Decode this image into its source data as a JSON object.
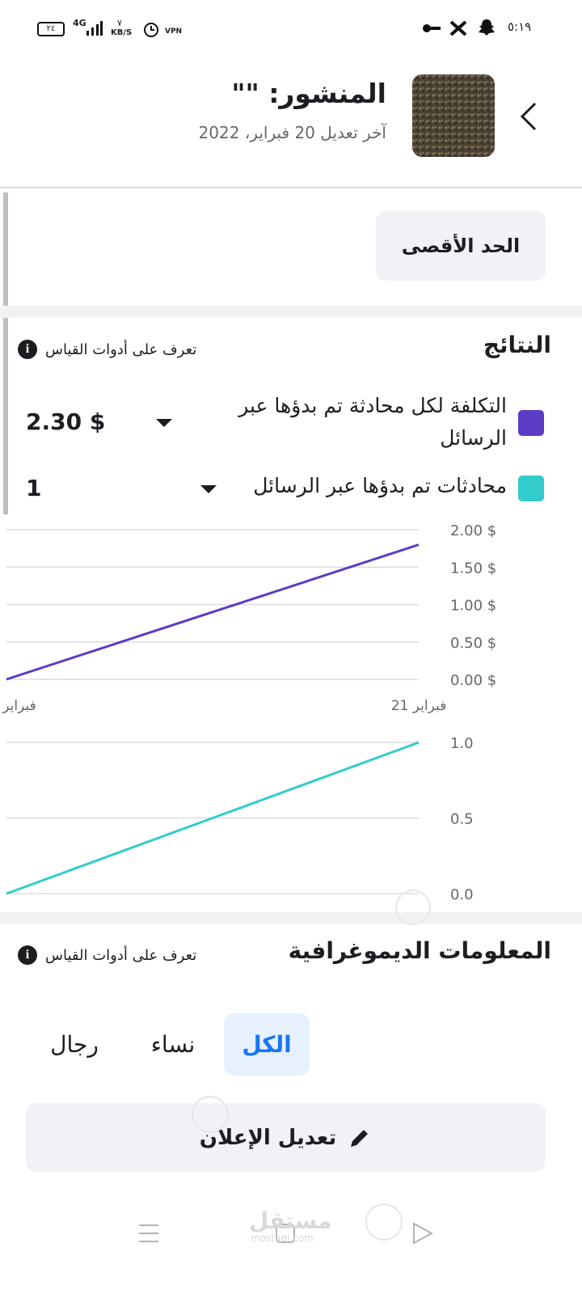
{
  "status_bar": {
    "battery": "٢٤",
    "network": "4G",
    "speed_value": "٧",
    "speed_unit": "KB/S",
    "vpn": "VPN",
    "time": "٥:١٩"
  },
  "header": {
    "title": "المنشور: \"\"",
    "subtitle": "آخر تعديل 20 فبراير، 2022"
  },
  "max_button": "الحد الأقصى",
  "results": {
    "title": "النتائج",
    "info_link": "تعرف على أدوات القياس",
    "metrics": [
      {
        "name": "التكلفة لكل محادثة تم بدؤها عبر الرسائل",
        "color": "#5b3cc4",
        "value": "2.30 $"
      },
      {
        "name": "محادثات تم بدؤها عبر الرسائل",
        "color": "#33cccc",
        "value": "1"
      }
    ]
  },
  "charts": [
    {
      "type": "line",
      "categories": [
        "فبراير",
        "فبراير 21"
      ],
      "values": [
        0,
        1.8
      ],
      "color": "#5b3cc4",
      "ylim": [
        0,
        2
      ],
      "yticks": [
        {
          "value": 0,
          "label": "0.00 $"
        },
        {
          "value": 0.5,
          "label": "0.50 $"
        },
        {
          "value": 1,
          "label": "1.00 $"
        },
        {
          "value": 1.5,
          "label": "1.50 $"
        },
        {
          "value": 2,
          "label": "2.00 $"
        }
      ],
      "grid": true
    },
    {
      "type": "line",
      "values": [
        0,
        1
      ],
      "color": "#33cccc",
      "ylim": [
        0,
        1
      ],
      "yticks": [
        {
          "value": 0,
          "label": "0.0"
        },
        {
          "value": 0.5,
          "label": "0.5"
        },
        {
          "value": 1,
          "label": "1.0"
        }
      ],
      "grid": true
    }
  ],
  "demographics": {
    "title": "المعلومات الديموغرافية",
    "info_link": "تعرف على أدوات القياس",
    "tabs": [
      "الكل",
      "نساء",
      "رجال"
    ]
  },
  "edit_button": "تعديل الإعلان",
  "watermark": {
    "arabic": "مستقل",
    "latin": "mostaql.com"
  }
}
